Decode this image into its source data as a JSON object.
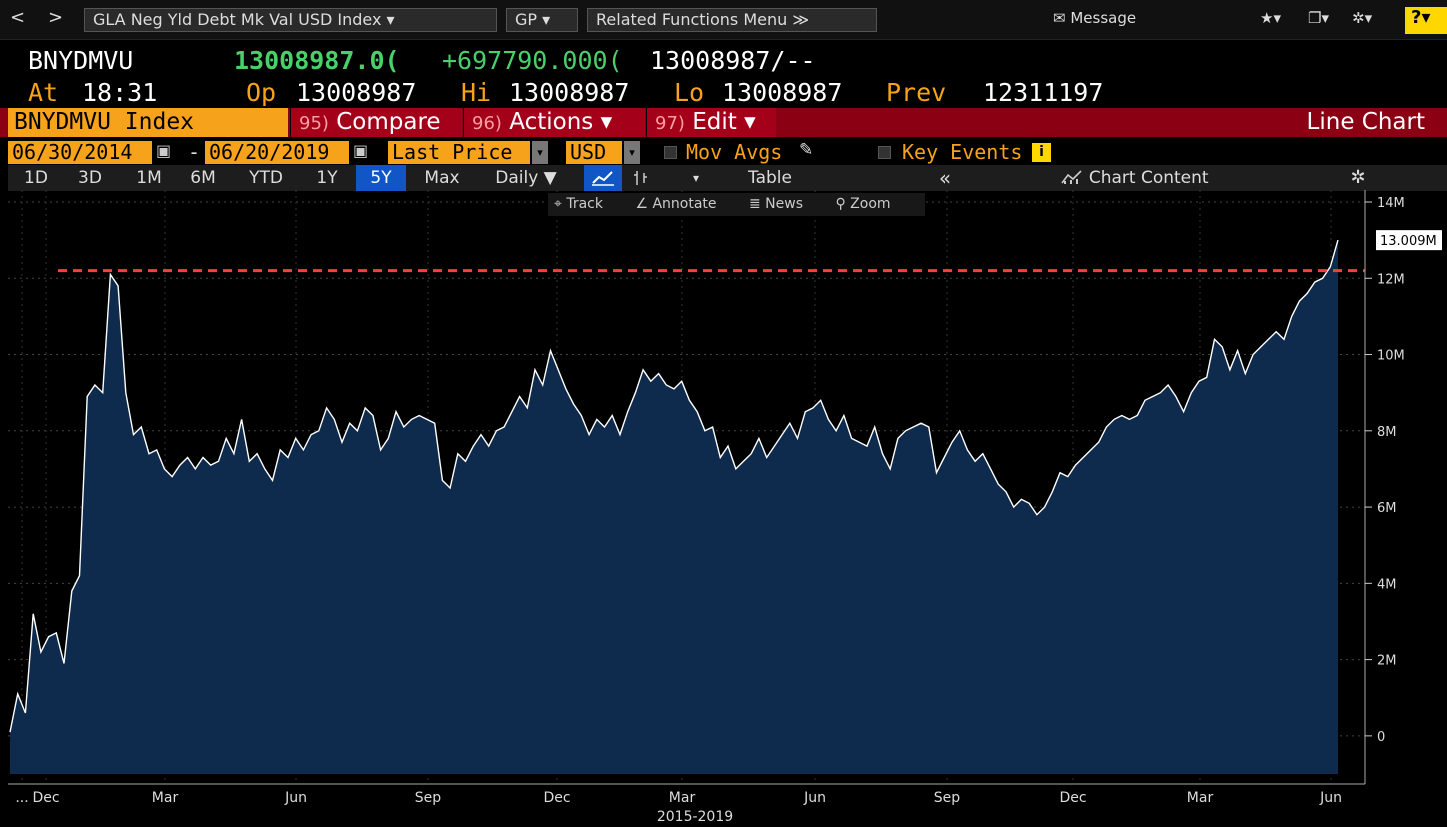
{
  "toolbar": {
    "back": "<",
    "forward": ">",
    "security_menu": "GLA Neg Yld Debt Mk Val USD Index ▾",
    "function_menu": "GP ▾",
    "related_menu": "Related Functions Menu ≫",
    "message": "Message",
    "star": "★▾",
    "window": "❐▾",
    "gear": "✲▾",
    "help": "?▾"
  },
  "quote": {
    "ticker": "BNYDMVU",
    "last": "13008987.0(",
    "change": "+697790.000(",
    "bid_ask": "13008987/--",
    "at_label": "At",
    "time": "18:31",
    "open_label": "Op",
    "open": "13008987",
    "high_label": "Hi",
    "high": "13008987",
    "low_label": "Lo",
    "low": "13008987",
    "prev_label": "Prev",
    "prev": "12311197"
  },
  "actions": {
    "security": "BNYDMVU Index",
    "compare_num": "95)",
    "compare": "Compare",
    "actions_num": "96)",
    "actions": "Actions ▾",
    "edit_num": "97)",
    "edit": "Edit ▾",
    "chart_type": "Line Chart"
  },
  "settings": {
    "start_date": "06/30/2014",
    "dash": "-",
    "end_date": "06/20/2019",
    "field": "Last Price",
    "currency": "USD",
    "mov_avgs": "Mov Avgs",
    "key_events": "Key Events"
  },
  "ranges": {
    "items": [
      "1D",
      "3D",
      "1M",
      "6M",
      "YTD",
      "1Y",
      "5Y",
      "Max"
    ],
    "active": "5Y",
    "frequency": "Daily ▼",
    "table": "Table",
    "collapse": "«",
    "chart_content": "Chart Content"
  },
  "tools": {
    "track": "Track",
    "annotate": "Annotate",
    "news": "News",
    "zoom": "Zoom"
  },
  "chart_data": {
    "type": "area",
    "series": [
      {
        "values": [
          0.1,
          1.1,
          0.6,
          3.2,
          2.2,
          2.6,
          2.7,
          1.9,
          3.8,
          4.2,
          8.9,
          9.2,
          9.0,
          12.1,
          11.8,
          9.0,
          7.9,
          8.1,
          7.4,
          7.5,
          7.0,
          6.8,
          7.1,
          7.3,
          7.0,
          7.3,
          7.1,
          7.2,
          7.8,
          7.4,
          8.3,
          7.2,
          7.4,
          7.0,
          6.7,
          7.5,
          7.3,
          7.8,
          7.5,
          7.9,
          8.0,
          8.6,
          8.3,
          7.7,
          8.2,
          8.0,
          8.6,
          8.4,
          7.5,
          7.8,
          8.5,
          8.1,
          8.3,
          8.4,
          8.3,
          8.2,
          6.7,
          6.5,
          7.4,
          7.2,
          7.6,
          7.9,
          7.6,
          8.0,
          8.1,
          8.5,
          8.9,
          8.6,
          9.6,
          9.2,
          10.1,
          9.6,
          9.1,
          8.7,
          8.4,
          7.9,
          8.3,
          8.1,
          8.4,
          7.9,
          8.5,
          9.0,
          9.6,
          9.3,
          9.5,
          9.2,
          9.1,
          9.3,
          8.8,
          8.5,
          8.0,
          8.1,
          7.3,
          7.6,
          7.0,
          7.2,
          7.4,
          7.8,
          7.3,
          7.6,
          7.9,
          8.2,
          7.8,
          8.5,
          8.6,
          8.8,
          8.3,
          8.0,
          8.4,
          7.8,
          7.7,
          7.6,
          8.1,
          7.4,
          7.0,
          7.8,
          8.0,
          8.1,
          8.2,
          8.1,
          6.9,
          7.3,
          7.7,
          8.0,
          7.5,
          7.2,
          7.4,
          7.0,
          6.6,
          6.4,
          6.0,
          6.2,
          6.1,
          5.8,
          6.0,
          6.4,
          6.9,
          6.8,
          7.1,
          7.3,
          7.5,
          7.7,
          8.1,
          8.3,
          8.4,
          8.3,
          8.4,
          8.8,
          8.9,
          9.0,
          9.2,
          8.9,
          8.5,
          9.0,
          9.3,
          9.4,
          10.4,
          10.2,
          9.6,
          10.1,
          9.5,
          10.0,
          10.2,
          10.4,
          10.6,
          10.4,
          11.0,
          11.4,
          11.6,
          11.9,
          12.0,
          12.3,
          13.0
        ]
      }
    ],
    "x_labels": [
      "...",
      "Dec",
      "Mar",
      "Jun",
      "Sep",
      "Dec",
      "Mar",
      "Jun",
      "Sep",
      "Dec",
      "Mar",
      "Jun"
    ],
    "x_sublabel": "2015-2019",
    "y_labels": [
      "14M",
      "12M",
      "10M",
      "8M",
      "6M",
      "4M",
      "2M",
      "0"
    ],
    "ylim": [
      -1,
      14
    ],
    "last_value_label": "13.009M",
    "reference_line": 12.2,
    "colors": {
      "fill": "#0e2a4d",
      "line": "#ffffff",
      "reference": "#ff3b3b"
    }
  }
}
